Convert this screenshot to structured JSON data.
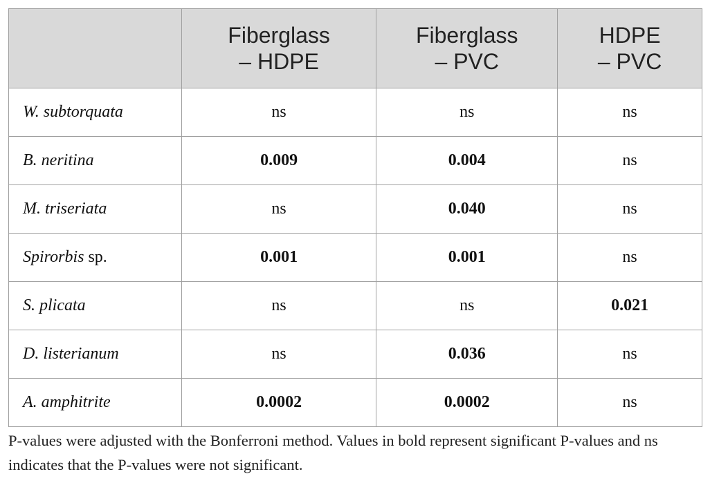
{
  "table": {
    "header": [
      null,
      [
        "Fiberglass",
        "– HDPE"
      ],
      [
        "Fiberglass",
        "– PVC"
      ],
      [
        "HDPE",
        "– PVC"
      ]
    ],
    "rows": [
      {
        "label": "W. subtorquata",
        "cells": [
          {
            "text": "ns",
            "bold": false
          },
          {
            "text": "ns",
            "bold": false
          },
          {
            "text": "ns",
            "bold": false
          }
        ]
      },
      {
        "label": "B. neritina",
        "cells": [
          {
            "text": "0.009",
            "bold": true
          },
          {
            "text": "0.004",
            "bold": true
          },
          {
            "text": "ns",
            "bold": false
          }
        ]
      },
      {
        "label": "M. triseriata",
        "cells": [
          {
            "text": "ns",
            "bold": false
          },
          {
            "text": "0.040",
            "bold": true
          },
          {
            "text": "ns",
            "bold": false
          }
        ]
      },
      {
        "label": "Spirorbis",
        "suffix": "sp.",
        "cells": [
          {
            "text": "0.001",
            "bold": true
          },
          {
            "text": "0.001",
            "bold": true
          },
          {
            "text": "ns",
            "bold": false
          }
        ]
      },
      {
        "label": "S. plicata",
        "cells": [
          {
            "text": "ns",
            "bold": false
          },
          {
            "text": "ns",
            "bold": false
          },
          {
            "text": "0.021",
            "bold": true
          }
        ]
      },
      {
        "label": "D. listerianum",
        "cells": [
          {
            "text": "ns",
            "bold": false
          },
          {
            "text": "0.036",
            "bold": true
          },
          {
            "text": "ns",
            "bold": false
          }
        ]
      },
      {
        "label": "A. amphitrite",
        "cells": [
          {
            "text": "0.0002",
            "bold": true
          },
          {
            "text": "0.0002",
            "bold": true
          },
          {
            "text": "ns",
            "bold": false
          }
        ]
      }
    ]
  },
  "footnote": "P-values were adjusted with the Bonferroni method. Values in bold represent significant P-values and ns indicates that the P-values were not significant."
}
